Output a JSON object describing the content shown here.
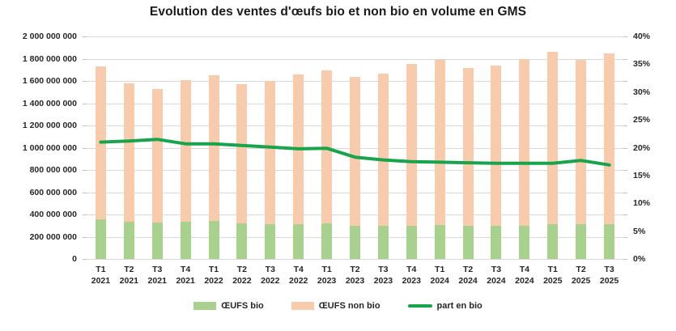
{
  "chart_data": {
    "type": "bar",
    "stacked": true,
    "title": "Evolution des ventes d'œufs bio et non bio en volume en GMS",
    "categories": [
      "T1 2021",
      "T2 2021",
      "T3 2021",
      "T4 2021",
      "T1 2022",
      "T2 2022",
      "T3 2022",
      "T4 2022",
      "T1 2023",
      "T2 2023",
      "T3 2023",
      "T4 2023",
      "T1 2024",
      "T2 2024",
      "T3 2024",
      "T4 2024",
      "T1 2025",
      "T2 2025",
      "T3 2025"
    ],
    "series": [
      {
        "name": "ŒUFS bio",
        "type": "bar",
        "axis": "left",
        "color": "#a9d18e",
        "values": [
          360000000,
          335000000,
          330000000,
          335000000,
          340000000,
          320000000,
          310000000,
          315000000,
          320000000,
          300000000,
          295000000,
          295000000,
          305000000,
          295000000,
          295000000,
          300000000,
          315000000,
          315000000,
          310000000
        ]
      },
      {
        "name": "ŒUFS non bio",
        "type": "bar",
        "axis": "left",
        "color": "#f8cbad",
        "values": [
          1370000000,
          1245000000,
          1200000000,
          1275000000,
          1310000000,
          1250000000,
          1290000000,
          1340000000,
          1375000000,
          1340000000,
          1370000000,
          1455000000,
          1490000000,
          1420000000,
          1445000000,
          1495000000,
          1545000000,
          1475000000,
          1535000000
        ]
      },
      {
        "name": "part en bio",
        "type": "line",
        "axis": "right",
        "color": "#17a44b",
        "values": [
          21.0,
          21.2,
          21.5,
          20.7,
          20.7,
          20.4,
          20.1,
          19.8,
          19.9,
          18.3,
          17.8,
          17.5,
          17.4,
          17.3,
          17.2,
          17.2,
          17.2,
          17.7,
          16.9
        ]
      }
    ],
    "left_axis": {
      "min": 0,
      "max": 2000000000,
      "tick_labels_top_to_bottom": [
        "2 000 000 000",
        "1 800 000 000",
        "1 600 000 000",
        "1 400 000 000",
        "1 200 000 000",
        "1 000 000 000",
        "800 000 000",
        "600 000 000",
        "400 000 000",
        "200 000 000",
        "0"
      ]
    },
    "right_axis": {
      "min": 0,
      "max": 40,
      "tick_labels_top_to_bottom": [
        "40%",
        "35%",
        "30%",
        "25%",
        "20%",
        "15%",
        "10%",
        "5%",
        "0%"
      ]
    },
    "grid": true,
    "legend_position": "bottom",
    "colors": {
      "gridline": "#d9d9d9",
      "bar_bio": "#a9d18e",
      "bar_non_bio": "#f8cbad",
      "line_part_bio": "#17a44b",
      "text": "#262626"
    }
  }
}
